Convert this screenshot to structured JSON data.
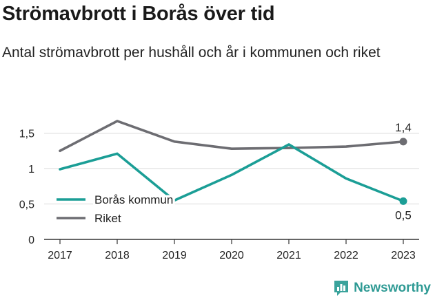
{
  "title": "Strömavbrott i Borås över tid",
  "subtitle": "Antal strömavbrott per hushåll och år i kommunen och riket",
  "logo_text": "Newsworthy",
  "chart_data": {
    "type": "line",
    "x": [
      2017,
      2018,
      2019,
      2020,
      2021,
      2022,
      2023
    ],
    "y_ticks": [
      "0",
      "0,5",
      "1",
      "1,5"
    ],
    "ylim": [
      0,
      1.7
    ],
    "series": [
      {
        "name": "Borås kommun",
        "color": "#1b9e96",
        "values": [
          0.99,
          1.21,
          0.55,
          0.91,
          1.34,
          0.86,
          0.54
        ],
        "end_label": "0,5"
      },
      {
        "name": "Riket",
        "color": "#6d6d72",
        "values": [
          1.25,
          1.67,
          1.38,
          1.28,
          1.29,
          1.31,
          1.38
        ],
        "end_label": "1,4"
      }
    ],
    "legend_position": "bottom-left",
    "grid": "horizontal"
  }
}
